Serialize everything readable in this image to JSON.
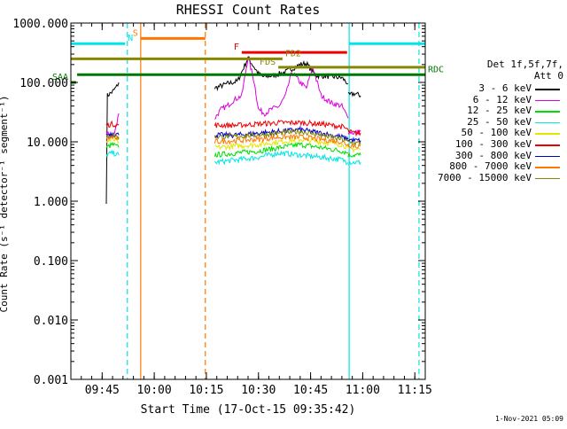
{
  "chart_data": {
    "type": "line",
    "title": "RHESSI Count Rates",
    "xlabel": "Start Time (17-Oct-15 09:35:42)",
    "ylabel": "Count Rate (s⁻¹ detector⁻¹ segment⁻¹)",
    "yscale": "log",
    "xlim": [
      9.6,
      11.3
    ],
    "ylim": [
      0.001,
      1000
    ],
    "x_ticks": [
      {
        "v": 9.75,
        "label": "09:45"
      },
      {
        "v": 10.0,
        "label": "10:00"
      },
      {
        "v": 10.25,
        "label": "10:15"
      },
      {
        "v": 10.5,
        "label": "10:30"
      },
      {
        "v": 10.75,
        "label": "10:45"
      },
      {
        "v": 11.0,
        "label": "11:00"
      },
      {
        "v": 11.25,
        "label": "11:15"
      }
    ],
    "x_minor_step": 0.05,
    "y_ticks": [
      {
        "v": 1000,
        "label": "1000.000"
      },
      {
        "v": 100,
        "label": "100.000"
      },
      {
        "v": 10,
        "label": "10.000"
      },
      {
        "v": 1,
        "label": "1.000"
      },
      {
        "v": 0.1,
        "label": "0.100"
      },
      {
        "v": 0.01,
        "label": "0.010"
      },
      {
        "v": 0.001,
        "label": "0.001"
      }
    ],
    "legend": {
      "position": "right",
      "header": [
        "Det 1f,5f,7f,",
        "Att 0"
      ],
      "entries": [
        {
          "name": "3 - 6 keV",
          "color": "#000000"
        },
        {
          "name": "6 - 12 keV",
          "color": "#dd00dd"
        },
        {
          "name": "12 - 25 keV",
          "color": "#00dd00"
        },
        {
          "name": "25 - 50 keV",
          "color": "#00e5e5"
        },
        {
          "name": "50 - 100 keV",
          "color": "#e5e500"
        },
        {
          "name": "100 - 300 keV",
          "color": "#ee0000"
        },
        {
          "name": "300 - 800 keV",
          "color": "#0000cc"
        },
        {
          "name": "800 - 7000 keV",
          "color": "#ff7700"
        },
        {
          "name": "7000 - 15000 keV",
          "color": "#888800"
        }
      ]
    },
    "series": [
      {
        "name": "3 - 6 keV",
        "color": "#000000",
        "segments": [
          {
            "x": [
              9.77,
              9.775,
              9.8,
              9.82,
              9.83
            ],
            "y": [
              1.0,
              60,
              70,
              85,
              100
            ]
          },
          {
            "x": [
              10.29,
              10.35,
              10.4,
              10.45,
              10.5,
              10.52,
              10.57,
              10.6,
              10.63,
              10.66,
              10.7,
              10.73,
              10.76,
              10.78,
              10.8,
              10.85,
              10.9,
              10.93
            ],
            "y": [
              80,
              95,
              105,
              260,
              140,
              125,
              130,
              140,
              150,
              170,
              200,
              210,
              150,
              130,
              130,
              125,
              120,
              95
            ]
          },
          {
            "x": [
              10.93,
              10.96,
              10.99
            ],
            "y": [
              60,
              65,
              60
            ]
          }
        ]
      },
      {
        "name": "6 - 12 keV",
        "color": "#dd00dd",
        "segments": [
          {
            "x": [
              9.77,
              9.8,
              9.82,
              9.83
            ],
            "y": [
              15,
              12,
              20,
              30
            ]
          },
          {
            "x": [
              10.29,
              10.32,
              10.35,
              10.38,
              10.42,
              10.45,
              10.48,
              10.5,
              10.53,
              10.56,
              10.6,
              10.63,
              10.66,
              10.7,
              10.73,
              10.76,
              10.8,
              10.85,
              10.9,
              10.93
            ],
            "y": [
              25,
              35,
              40,
              50,
              60,
              270,
              100,
              35,
              30,
              35,
              40,
              60,
              150,
              100,
              80,
              180,
              60,
              45,
              40,
              25
            ]
          },
          {
            "x": [
              10.93,
              10.96,
              10.99
            ],
            "y": [
              15,
              14,
              15
            ]
          }
        ]
      },
      {
        "name": "12 - 25 keV",
        "color": "#00dd00",
        "segments": [
          {
            "x": [
              9.77,
              9.8,
              9.83
            ],
            "y": [
              8,
              9,
              8
            ]
          },
          {
            "x": [
              10.29,
              10.4,
              10.5,
              10.6,
              10.7,
              10.8,
              10.9,
              10.93
            ],
            "y": [
              6,
              6.5,
              7,
              8,
              9,
              8,
              7,
              6.5
            ]
          },
          {
            "x": [
              10.93,
              10.96,
              10.99
            ],
            "y": [
              6,
              6,
              6
            ]
          }
        ]
      },
      {
        "name": "25 - 50 keV",
        "color": "#00e5e5",
        "segments": [
          {
            "x": [
              9.77,
              9.8,
              9.83
            ],
            "y": [
              6,
              6.5,
              6
            ]
          },
          {
            "x": [
              10.29,
              10.4,
              10.5,
              10.6,
              10.7,
              10.8,
              10.9,
              10.93
            ],
            "y": [
              4.5,
              5,
              5.5,
              6.5,
              6,
              5.5,
              5,
              4.5
            ]
          },
          {
            "x": [
              10.93,
              10.96,
              10.99
            ],
            "y": [
              4.5,
              4.5,
              4.5
            ]
          }
        ]
      },
      {
        "name": "50 - 100 keV",
        "color": "#e5e500",
        "segments": [
          {
            "x": [
              9.77,
              9.8,
              9.83
            ],
            "y": [
              10,
              11,
              10
            ]
          },
          {
            "x": [
              10.29,
              10.4,
              10.5,
              10.6,
              10.7,
              10.8,
              10.9,
              10.93
            ],
            "y": [
              8,
              8.5,
              9,
              10,
              11,
              10,
              9,
              8
            ]
          },
          {
            "x": [
              10.93,
              10.96,
              10.99
            ],
            "y": [
              7.5,
              7.5,
              7.5
            ]
          }
        ]
      },
      {
        "name": "100 - 300 keV",
        "color": "#ee0000",
        "segments": [
          {
            "x": [
              9.77,
              9.8,
              9.83
            ],
            "y": [
              19,
              20,
              19
            ]
          },
          {
            "x": [
              10.29,
              10.4,
              10.5,
              10.6,
              10.7,
              10.8,
              10.9,
              10.93
            ],
            "y": [
              19,
              19,
              20,
              21,
              21,
              20,
              18,
              16
            ]
          },
          {
            "x": [
              10.93,
              10.96,
              10.99
            ],
            "y": [
              15,
              14,
              14
            ]
          }
        ]
      },
      {
        "name": "300 - 800 keV",
        "color": "#0000cc",
        "segments": [
          {
            "x": [
              9.77,
              9.8,
              9.83
            ],
            "y": [
              13,
              14,
              13
            ]
          },
          {
            "x": [
              10.29,
              10.4,
              10.5,
              10.6,
              10.7,
              10.8,
              10.9,
              10.93
            ],
            "y": [
              13,
              13,
              14,
              15,
              16,
              14,
              12,
              11
            ]
          },
          {
            "x": [
              10.93,
              10.96,
              10.99
            ],
            "y": [
              11,
              10.5,
              10.5
            ]
          }
        ]
      },
      {
        "name": "800 - 7000 keV",
        "color": "#ff7700",
        "segments": [
          {
            "x": [
              9.77,
              9.8,
              9.83
            ],
            "y": [
              11,
              12,
              11
            ]
          },
          {
            "x": [
              10.29,
              10.4,
              10.5,
              10.6,
              10.7,
              10.8,
              10.9,
              10.93
            ],
            "y": [
              10,
              10.5,
              11,
              12,
              12,
              11,
              10,
              9
            ]
          },
          {
            "x": [
              10.93,
              10.96,
              10.99
            ],
            "y": [
              9,
              8.5,
              8.5
            ]
          }
        ]
      },
      {
        "name": "7000 - 15000 keV",
        "color": "#888800",
        "segments": [
          {
            "x": [
              9.77,
              9.8,
              9.83
            ],
            "y": [
              12,
              13,
              12
            ]
          },
          {
            "x": [
              10.29,
              10.4,
              10.5,
              10.6,
              10.7,
              10.8,
              10.9,
              10.93
            ],
            "y": [
              12,
              12.5,
              13,
              14,
              15,
              13,
              11,
              10
            ]
          },
          {
            "x": [
              10.93,
              10.96,
              10.99
            ],
            "y": [
              10,
              9.5,
              9.5
            ]
          }
        ]
      }
    ],
    "flag_bars": [
      {
        "label": "S",
        "color": "#ff7700",
        "x0": 9.935,
        "x1": 10.245,
        "y": 550,
        "label_side": "left"
      },
      {
        "label": "N",
        "color": "#00e5e5",
        "x0": 9.6,
        "x1": 9.86,
        "y": 450,
        "label_side": "right"
      },
      {
        "label": "",
        "color": "#00e5e5",
        "x0": 10.935,
        "x1": 11.3,
        "y": 450,
        "label_side": "none"
      },
      {
        "label": "F",
        "color": "#ee0000",
        "x0": 10.42,
        "x1": 10.925,
        "y": 320,
        "label_side": "left"
      },
      {
        "label": "FD2",
        "color": "#888800",
        "x0": 9.6,
        "x1": 10.615,
        "y": 250,
        "label_side": "right"
      },
      {
        "label": "FDS",
        "color": "#888800",
        "x0": 10.595,
        "x1": 11.3,
        "y": 180,
        "label_side": "left"
      },
      {
        "label": "RDC",
        "color": "#007700",
        "x0": 9.63,
        "x1": 11.3,
        "y": 135,
        "label_side": "right"
      },
      {
        "label": "SAA",
        "color": "#007700",
        "x0": 9.6,
        "x1": 9.625,
        "y": 100,
        "label_side": "left"
      }
    ],
    "vlines": [
      {
        "x": 9.871,
        "color": "#00e5e5",
        "style": "dashed"
      },
      {
        "x": 9.935,
        "color": "#ff7700",
        "style": "solid"
      },
      {
        "x": 10.245,
        "color": "#ff7700",
        "style": "dashed"
      },
      {
        "x": 10.935,
        "color": "#00e5e5",
        "style": "solid"
      },
      {
        "x": 11.27,
        "color": "#00e5e5",
        "style": "dashed"
      }
    ],
    "footnote": "1-Nov-2021 05:09"
  }
}
